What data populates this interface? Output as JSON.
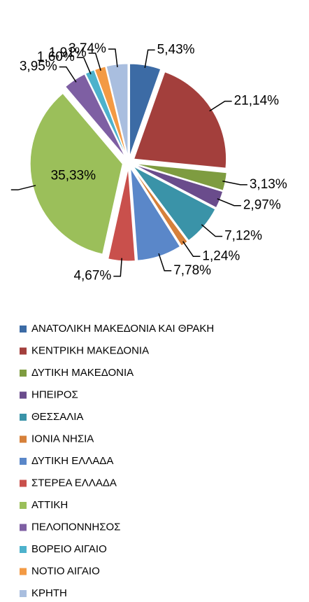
{
  "chart_data": {
    "type": "pie",
    "categories": [
      "ΑΝΑΤΟΛΙΚΗ ΜΑΚΕΔΟΝΙΑ ΚΑΙ ΘΡΑΚΗ",
      "ΚΕΝΤΡΙΚΗ ΜΑΚΕΔΟΝΙΑ",
      "ΔΥΤΙΚΗ ΜΑΚΕΔΟΝΙΑ",
      "ΗΠΕΙΡΟΣ",
      "ΘΕΣΣΑΛΙΑ",
      "ΙΟΝΙΑ ΝΗΣΙΑ",
      "ΔΥΤΙΚΗ ΕΛΛΑΔΑ",
      "ΣΤΕΡΕΑ ΕΛΛΑΔΑ",
      "ΑΤΤΙΚΗ",
      "ΠΕΛΟΠΟΝΝΗΣΟΣ",
      "ΒΟΡΕΙΟ ΑΙΓΑΙΟ",
      "ΝΟΤΙΟ ΑΙΓΑΙΟ",
      "ΚΡΗΤΗ"
    ],
    "values": [
      5.43,
      21.14,
      3.13,
      2.97,
      7.12,
      1.24,
      7.78,
      4.67,
      35.33,
      3.95,
      1.6,
      1.91,
      3.74
    ],
    "value_labels": [
      "5,43%",
      "21,14%",
      "3,13%",
      "2,97%",
      "7,12%",
      "1,24%",
      "7,78%",
      "4,67%",
      "35,33%",
      "3,95%",
      "1,60%",
      "1,91%",
      "3,74%"
    ],
    "colors": [
      "#3c6ba5",
      "#a33f3c",
      "#7e9c40",
      "#6a4c8c",
      "#3a93a8",
      "#d6803a",
      "#5a87c9",
      "#c9504c",
      "#9bbf5a",
      "#7e5fa3",
      "#4db2cc",
      "#f39a44",
      "#a9bedf"
    ],
    "legend": "bottom"
  }
}
